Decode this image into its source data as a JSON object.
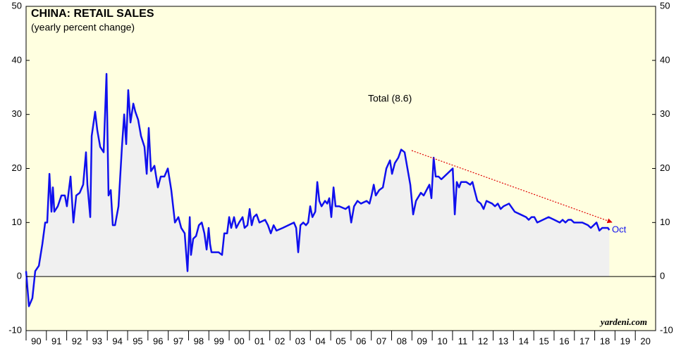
{
  "chart_data": {
    "type": "line",
    "title": "CHINA: RETAIL SALES",
    "subtitle": "(yearly percent change)",
    "annotation": "Oct",
    "source": "yardeni.com",
    "xlim": [
      1990,
      2021
    ],
    "xticks": [
      {
        "value": 1990,
        "label": "90"
      },
      {
        "value": 1991,
        "label": "91"
      },
      {
        "value": 1992,
        "label": "92"
      },
      {
        "value": 1993,
        "label": "93"
      },
      {
        "value": 1994,
        "label": "94"
      },
      {
        "value": 1995,
        "label": "95"
      },
      {
        "value": 1996,
        "label": "96"
      },
      {
        "value": 1997,
        "label": "97"
      },
      {
        "value": 1998,
        "label": "98"
      },
      {
        "value": 1999,
        "label": "99"
      },
      {
        "value": 2000,
        "label": "00"
      },
      {
        "value": 2001,
        "label": "01"
      },
      {
        "value": 2002,
        "label": "02"
      },
      {
        "value": 2003,
        "label": "03"
      },
      {
        "value": 2004,
        "label": "04"
      },
      {
        "value": 2005,
        "label": "05"
      },
      {
        "value": 2006,
        "label": "06"
      },
      {
        "value": 2007,
        "label": "07"
      },
      {
        "value": 2008,
        "label": "08"
      },
      {
        "value": 2009,
        "label": "09"
      },
      {
        "value": 2010,
        "label": "10"
      },
      {
        "value": 2011,
        "label": "11"
      },
      {
        "value": 2012,
        "label": "12"
      },
      {
        "value": 2013,
        "label": "13"
      },
      {
        "value": 2014,
        "label": "14"
      },
      {
        "value": 2015,
        "label": "15"
      },
      {
        "value": 2016,
        "label": "16"
      },
      {
        "value": 2017,
        "label": "17"
      },
      {
        "value": 2018,
        "label": "18"
      },
      {
        "value": 2019,
        "label": "19"
      },
      {
        "value": 2020,
        "label": "20"
      }
    ],
    "ylim": [
      -10,
      50
    ],
    "yticks": [
      -10,
      0,
      10,
      20,
      30,
      40,
      50
    ],
    "y2lim": [
      -10,
      50
    ],
    "y2ticks": [
      -10,
      0,
      10,
      20,
      30,
      40,
      50
    ],
    "x": [
      1990.0,
      1990.14,
      1990.31,
      1990.45,
      1990.63,
      1990.8,
      1990.94,
      1991.04,
      1991.15,
      1991.25,
      1991.32,
      1991.39,
      1991.56,
      1991.74,
      1991.91,
      1992.01,
      1992.19,
      1992.33,
      1992.47,
      1992.64,
      1992.81,
      1992.95,
      1993.02,
      1993.16,
      1993.23,
      1993.4,
      1993.51,
      1993.65,
      1993.82,
      1993.96,
      1994.06,
      1994.17,
      1994.27,
      1994.38,
      1994.55,
      1994.72,
      1994.83,
      1994.93,
      1995.03,
      1995.14,
      1995.28,
      1995.38,
      1995.52,
      1995.66,
      1995.83,
      1995.94,
      1996.04,
      1996.15,
      1996.32,
      1996.49,
      1996.63,
      1996.81,
      1996.98,
      1997.15,
      1997.33,
      1997.5,
      1997.64,
      1997.81,
      1997.95,
      1998.06,
      1998.12,
      1998.23,
      1998.37,
      1998.51,
      1998.65,
      1998.78,
      1998.89,
      1998.99,
      1999.06,
      1999.13,
      1999.48,
      1999.65,
      1999.76,
      1999.9,
      2000.0,
      2000.1,
      2000.24,
      2000.35,
      2000.49,
      2000.66,
      2000.76,
      2000.9,
      2001.01,
      2001.11,
      2001.21,
      2001.35,
      2001.49,
      2001.77,
      2001.91,
      2002.05,
      2002.19,
      2002.33,
      2002.64,
      2002.92,
      2003.19,
      2003.3,
      2003.4,
      2003.51,
      2003.65,
      2003.78,
      2003.89,
      2003.99,
      2004.1,
      2004.24,
      2004.34,
      2004.44,
      2004.55,
      2004.72,
      2004.83,
      2004.93,
      2005.03,
      2005.14,
      2005.24,
      2005.42,
      2005.73,
      2005.9,
      2006.01,
      2006.15,
      2006.32,
      2006.49,
      2006.77,
      2006.91,
      2007.01,
      2007.12,
      2007.22,
      2007.39,
      2007.57,
      2007.74,
      2007.92,
      2008.02,
      2008.16,
      2008.33,
      2008.47,
      2008.64,
      2008.78,
      2008.92,
      2009.06,
      2009.2,
      2009.44,
      2009.58,
      2009.72,
      2009.86,
      2009.96,
      2010.07,
      2010.17,
      2010.31,
      2010.45,
      2010.73,
      2011.01,
      2011.11,
      2011.21,
      2011.32,
      2011.42,
      2011.67,
      2011.87,
      2011.98,
      2012.08,
      2012.22,
      2012.39,
      2012.53,
      2012.67,
      2012.95,
      2013.09,
      2013.23,
      2013.37,
      2013.51,
      2013.78,
      2014.06,
      2014.34,
      2014.62,
      2014.75,
      2014.89,
      2015.03,
      2015.17,
      2015.45,
      2015.73,
      2016.01,
      2016.28,
      2016.42,
      2016.56,
      2016.7,
      2016.84,
      2016.98,
      2017.39,
      2017.67,
      2017.81,
      2018.09,
      2018.23,
      2018.37,
      2018.51,
      2018.65,
      2018.72
    ],
    "series": [
      {
        "name": "Total (8.6)",
        "color": "#1010ee",
        "fill": "#f0f0f0",
        "values": [
          1,
          -5.5,
          -4,
          1,
          2,
          6,
          10,
          10,
          19,
          12,
          16.5,
          12,
          13,
          15,
          15,
          13,
          18.5,
          10,
          15,
          15.5,
          17,
          23,
          17,
          11,
          26,
          30.5,
          27,
          24,
          23,
          37.5,
          15,
          16,
          9.5,
          9.5,
          13,
          24,
          30,
          24.5,
          34.5,
          28.5,
          32,
          30.5,
          29,
          26,
          24,
          19,
          27.5,
          19.5,
          20.5,
          16.5,
          18.5,
          18.5,
          20,
          16,
          10,
          11,
          9,
          8,
          1,
          11,
          4,
          7,
          7.5,
          9.5,
          10,
          8,
          5,
          9,
          6,
          4.5,
          4.5,
          4,
          8,
          8,
          11,
          9,
          11,
          9,
          10,
          11,
          9,
          9.5,
          12.5,
          9.5,
          11,
          11.5,
          10,
          10.5,
          9.5,
          8,
          9.5,
          8.5,
          9,
          9.5,
          10,
          9,
          4.5,
          9.5,
          10,
          9.5,
          10,
          13,
          11,
          12,
          17.5,
          14,
          13,
          14,
          13.5,
          14.5,
          11,
          16.5,
          13,
          13,
          12.5,
          13,
          10,
          13,
          14,
          13.5,
          14,
          13.5,
          15,
          17,
          15,
          16,
          16.5,
          20,
          21.5,
          19,
          21,
          22,
          23.5,
          23,
          20,
          17,
          11.5,
          14,
          15.5,
          15,
          16,
          17,
          14.5,
          22,
          18.5,
          18.5,
          18,
          19,
          20,
          11.5,
          17.5,
          16.5,
          17.5,
          17.5,
          17,
          17.5,
          16,
          14,
          13.5,
          12.5,
          14,
          13.5,
          13,
          13.5,
          12.5,
          13,
          13.5,
          12,
          11.5,
          11,
          10.5,
          11,
          11,
          10,
          10.5,
          11,
          10.5,
          10,
          10.5,
          10,
          10.5,
          10.5,
          10,
          10,
          9.5,
          9,
          10,
          8.5,
          9,
          9,
          9,
          8.6
        ]
      }
    ]
  }
}
